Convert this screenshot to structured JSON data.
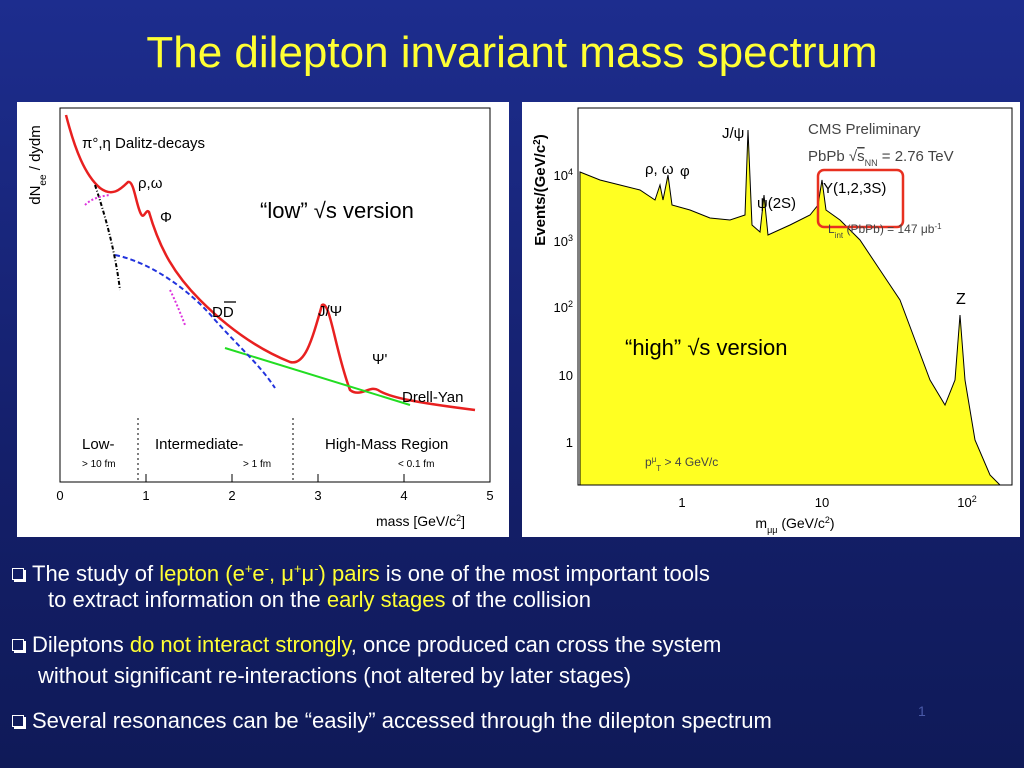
{
  "title": "The dilepton invariant mass spectrum",
  "left_figure": {
    "y_label": {
      "main": "dN",
      "sub": "ee",
      "rest": " / dydm"
    },
    "dalitz": "π°,η Dalitz-decays",
    "rho_omega": "ρ,ω",
    "phi": "Φ",
    "open_charm": "DD",
    "jpsi": "J/Ψ",
    "psi_prime": "Ψ'",
    "drell_yan": "Drell-Yan",
    "regions": [
      {
        "name": "Low-",
        "scale": "> 10 fm"
      },
      {
        "name": "Intermediate-",
        "scale": "> 1 fm"
      },
      {
        "name": "High-Mass Region",
        "scale": "< 0.1 fm"
      }
    ],
    "x_ticks": [
      "0",
      "1",
      "2",
      "3",
      "4",
      "5"
    ],
    "x_label": {
      "main": "mass [GeV/c",
      "sup": "2",
      "rest": "]"
    },
    "overlay": "“low” √s version"
  },
  "right_figure": {
    "y_label": {
      "main": "Events/(GeV/c",
      "sup": "2",
      "rest": ")"
    },
    "y_ticks": [
      {
        "base": "10",
        "exp": "4"
      },
      {
        "base": "10",
        "exp": "3"
      },
      {
        "base": "10",
        "exp": "2"
      },
      {
        "base": "10"
      },
      {
        "base": "1"
      }
    ],
    "x_ticks": [
      {
        "base": "1"
      },
      {
        "base": "10"
      },
      {
        "base": "10",
        "exp": "2"
      }
    ],
    "x_label": {
      "main": "m",
      "sub": "μμ",
      "rest": " (GeV/c",
      "sup": "2",
      "end": ")"
    },
    "jpsi": "J/ψ",
    "rho_omega": "ρ, ω",
    "phi": "φ",
    "psi2s": "ψ(2S)",
    "upsilon": "Υ(1,2,3S)",
    "z": "Z",
    "experiment": "CMS Preliminary",
    "system": {
      "pre": "PbPb √",
      "s": "s",
      "sub": "NN",
      "rest": " = 2.76 TeV"
    },
    "luminosity": {
      "main": "L",
      "sub": "int",
      "rest": " (PbPb) = 147 μb",
      "sup": "-1"
    },
    "cut": {
      "main": "p",
      "sup": "μ",
      "sub": "T",
      "rest": " > 4 GeV/c"
    },
    "overlay": "“high” √s version"
  },
  "bullets": [
    {
      "lines": [
        [
          {
            "text": "The study of "
          },
          {
            "text": "lepton (e",
            "hl": true
          },
          {
            "text": "+",
            "hl": true,
            "sup": true
          },
          {
            "text": "e",
            "hl": true
          },
          {
            "text": "-",
            "hl": true,
            "sup": true
          },
          {
            "text": ", μ",
            "hl": true
          },
          {
            "text": "+",
            "hl": true,
            "sup": true
          },
          {
            "text": "μ",
            "hl": true
          },
          {
            "text": "-",
            "hl": true,
            "sup": true
          },
          {
            "text": ") pairs",
            "hl": true
          },
          {
            "text": " is one of the most important tools"
          }
        ],
        [
          {
            "text": "to extract information on the "
          },
          {
            "text": "early stages",
            "hl": true
          },
          {
            "text": " of the collision"
          }
        ]
      ]
    },
    {
      "lines": [
        [
          {
            "text": "Dileptons "
          },
          {
            "text": "do not interact strongly",
            "hl": true
          },
          {
            "text": ", once produced can cross the system"
          }
        ],
        [
          {
            "text": "without significant re-interactions (not altered by later stages)"
          }
        ]
      ]
    },
    {
      "lines": [
        [
          {
            "text": "Several resonances can be “easily” accessed through the dilepton spectrum"
          }
        ]
      ]
    }
  ],
  "page_number": "1"
}
